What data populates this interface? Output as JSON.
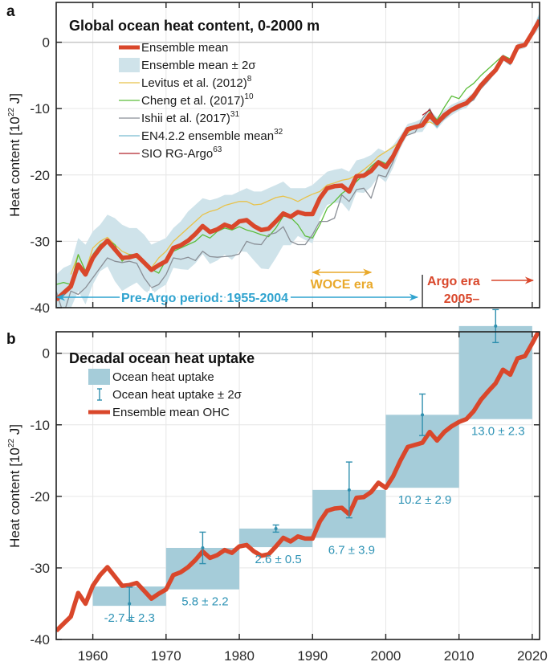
{
  "colors": {
    "ensemble": "#d9472b",
    "band": "#cfe3ea",
    "levitus": "#e8c24a",
    "cheng": "#5cbd3a",
    "ishii": "#8a8f96",
    "en4": "#79bcd0",
    "sio": "#b2242c",
    "bars": "#a5ccd9",
    "errbar": "#2f8fae",
    "preargo": "#2fa3cf",
    "woce": "#e9a92b",
    "argo": "#d9472b",
    "grid": "#e6e6e6",
    "zero": "#c8c8c8",
    "axis": "#222222"
  },
  "chart_data": [
    {
      "panel": "a",
      "type": "line",
      "title": "Global ocean heat content, 0-2000 m",
      "xlabel": "",
      "ylabel": "Heat content [10^22 J]",
      "ylabel_parts": {
        "pre": "Heat content [10",
        "sup": "22",
        "post": " J]"
      },
      "xlim": [
        1955,
        2021
      ],
      "ylim": [
        -40,
        6
      ],
      "yticks": [
        -40,
        -30,
        -20,
        -10,
        0
      ],
      "ytick_labels": [
        "-40",
        "-30",
        "-20",
        "-10",
        "0"
      ],
      "xticks": [
        1960,
        1970,
        1980,
        1990,
        2000,
        2010,
        2020
      ],
      "grid": true,
      "legend_position": "top-left",
      "legend": [
        {
          "key": "ensemble",
          "label": "Ensemble mean",
          "sup": "",
          "style": "thick-line"
        },
        {
          "key": "band",
          "label": "Ensemble mean ± 2σ",
          "sup": "",
          "style": "patch"
        },
        {
          "key": "levitus",
          "label": "Levitus et al. (2012)",
          "sup": "8",
          "style": "line"
        },
        {
          "key": "cheng",
          "label": "Cheng et al. (2017)",
          "sup": "10",
          "style": "line"
        },
        {
          "key": "ishii",
          "label": "Ishii et al. (2017)",
          "sup": "31",
          "style": "line"
        },
        {
          "key": "en4",
          "label": "EN4.2.2 ensemble mean",
          "sup": "32",
          "style": "line"
        },
        {
          "key": "sio",
          "label": "SIO RG-Argo",
          "sup": "63",
          "style": "line"
        }
      ],
      "annotations": {
        "preargo": {
          "label": "Pre-Argo period: 1955-2004",
          "from": 1955,
          "to": 2004
        },
        "woce": {
          "label": "WOCE era",
          "from": 1990,
          "to": 1998
        },
        "argo_line": 2005,
        "argo_label": "Argo era",
        "argo_label2": "2005–"
      },
      "x": [
        1955,
        1956,
        1957,
        1958,
        1959,
        1960,
        1961,
        1962,
        1963,
        1964,
        1965,
        1966,
        1967,
        1968,
        1969,
        1970,
        1971,
        1972,
        1973,
        1974,
        1975,
        1976,
        1977,
        1978,
        1979,
        1980,
        1981,
        1982,
        1983,
        1984,
        1985,
        1986,
        1987,
        1988,
        1989,
        1990,
        1991,
        1992,
        1993,
        1994,
        1995,
        1996,
        1997,
        1998,
        1999,
        2000,
        2001,
        2002,
        2003,
        2004,
        2005,
        2006,
        2007,
        2008,
        2009,
        2010,
        2011,
        2012,
        2013,
        2014,
        2015,
        2016,
        2017,
        2018,
        2019,
        2020,
        2021
      ],
      "series": [
        {
          "name": "Ensemble mean",
          "key": "ensemble",
          "values": [
            -38.8,
            -37.8,
            -36.8,
            -33.5,
            -35.0,
            -32.5,
            -31.0,
            -29.9,
            -31.2,
            -32.5,
            -32.4,
            -32.1,
            -33.2,
            -34.3,
            -33.6,
            -33.0,
            -31.0,
            -30.6,
            -29.9,
            -28.9,
            -27.7,
            -28.6,
            -28.2,
            -27.5,
            -27.9,
            -27.0,
            -26.8,
            -27.7,
            -28.3,
            -28.1,
            -27.0,
            -25.8,
            -26.3,
            -25.6,
            -25.9,
            -25.9,
            -23.5,
            -22.0,
            -21.7,
            -21.6,
            -22.5,
            -20.2,
            -20.1,
            -19.4,
            -18.1,
            -18.8,
            -17.2,
            -15.0,
            -13.1,
            -12.8,
            -12.5,
            -11.0,
            -12.2,
            -11.0,
            -10.2,
            -9.6,
            -9.2,
            -8.1,
            -6.5,
            -5.3,
            -4.2,
            -2.3,
            -3.0,
            -0.7,
            -0.4,
            1.4,
            3.3
          ]
        },
        {
          "name": "Levitus et al. (2012)",
          "key": "levitus",
          "values": [
            null,
            null,
            -35.0,
            -32.0,
            -34.5,
            -31.0,
            -30.0,
            -29.4,
            -30.5,
            -31.5,
            -32.0,
            -32.5,
            -33.5,
            -34.0,
            -32.5,
            -31.5,
            -30.0,
            -29.0,
            -28.0,
            -27.0,
            -26.0,
            -25.5,
            -25.2,
            -24.6,
            -24.3,
            -24.0,
            -24.0,
            -24.5,
            -24.4,
            -23.9,
            -23.4,
            -23.2,
            -23.5,
            -24.0,
            -23.4,
            -22.9,
            -22.5,
            -21.5,
            -21.2,
            -20.8,
            -20.6,
            -20.0,
            -19.2,
            -18.3,
            -17.2,
            -16.5,
            -15.8,
            -14.9,
            -13.7,
            -12.6,
            -12.3,
            -12.0,
            -12.6,
            -11.0,
            -10.5,
            -9.5,
            -9.0,
            -8.0,
            -6.5,
            -5.0,
            -4.0,
            -2.5,
            -3.0,
            -0.9,
            -0.5,
            1.2,
            null
          ]
        },
        {
          "name": "Cheng et al. (2017)",
          "key": "cheng",
          "values": [
            -36.5,
            -36.2,
            -36.5,
            -32.0,
            -34.5,
            -32.0,
            -30.5,
            -29.8,
            -30.5,
            -33.0,
            -32.0,
            -32.0,
            -33.5,
            -34.2,
            -34.8,
            -32.8,
            -31.5,
            -31.0,
            -30.5,
            -30.0,
            -29.0,
            -29.5,
            -28.5,
            -28.0,
            -28.3,
            -27.8,
            -28.3,
            -28.6,
            -29.0,
            -29.3,
            -28.0,
            -26.2,
            -26.4,
            -27.5,
            -29.2,
            -29.5,
            -27.5,
            -25.0,
            -24.0,
            -22.8,
            -22.0,
            -21.0,
            -19.9,
            -18.7,
            -17.8,
            -18.3,
            -16.8,
            -15.0,
            -13.3,
            -12.7,
            -12.3,
            -10.5,
            -11.7,
            -9.8,
            -8.1,
            -8.5,
            -7.0,
            -6.2,
            -5.0,
            -4.0,
            -3.0,
            -2.0,
            -2.5,
            -0.5,
            -0.2,
            1.4,
            3.5
          ]
        },
        {
          "name": "Ishii et al. (2017)",
          "key": "ishii",
          "values": [
            -37.5,
            -41.0,
            -37.5,
            -38.0,
            -37.0,
            -35.5,
            -34.0,
            -32.5,
            -33.0,
            -33.2,
            -33.0,
            -33.3,
            -35.5,
            -37.0,
            -36.5,
            -35.0,
            -32.5,
            -32.7,
            -32.4,
            -32.9,
            -31.5,
            -32.3,
            -32.4,
            -32.3,
            -32.2,
            -31.9,
            -30.0,
            -30.4,
            -30.5,
            -29.0,
            -28.7,
            -27.8,
            -30.0,
            -30.5,
            -30.5,
            -29.0,
            -27.0,
            -27.0,
            -26.5,
            -23.0,
            -24.0,
            -22.2,
            -22.0,
            -23.5,
            -20.0,
            -20.3,
            -18.0,
            -14.5,
            -14.0,
            -13.6,
            -11.5,
            -10.0,
            -12.5,
            -11.5,
            -10.5,
            -10.0,
            -9.3,
            -8.7,
            -7.0,
            -5.8,
            -4.5,
            -2.4,
            -3.3,
            -1.0,
            -0.6,
            1.3,
            3.6
          ]
        },
        {
          "name": "EN4.2.2 ensemble mean",
          "key": "en4",
          "values": [
            null,
            null,
            null,
            null,
            null,
            null,
            null,
            null,
            null,
            null,
            null,
            null,
            null,
            null,
            null,
            null,
            null,
            null,
            null,
            null,
            null,
            null,
            null,
            null,
            null,
            null,
            null,
            null,
            null,
            null,
            null,
            null,
            null,
            null,
            null,
            null,
            null,
            null,
            null,
            null,
            null,
            null,
            null,
            null,
            null,
            null,
            null,
            null,
            null,
            -13.0,
            -12.5,
            -11.4,
            -12.8,
            -11.2,
            -10.5,
            -9.9,
            -9.4,
            -8.5,
            -6.8,
            -5.5,
            -4.4,
            -2.5,
            -3.4,
            -0.8,
            -0.4,
            1.6,
            4.0
          ]
        },
        {
          "name": "SIO RG-Argo",
          "key": "sio",
          "values": [
            null,
            null,
            null,
            null,
            null,
            null,
            null,
            null,
            null,
            null,
            null,
            null,
            null,
            null,
            null,
            null,
            null,
            null,
            null,
            null,
            null,
            null,
            null,
            null,
            null,
            null,
            null,
            null,
            null,
            null,
            null,
            null,
            null,
            null,
            null,
            null,
            null,
            null,
            null,
            null,
            null,
            null,
            null,
            null,
            null,
            null,
            null,
            null,
            null,
            null,
            -11.0,
            -10.2,
            -12.0,
            -10.8,
            -10.0,
            -9.4,
            -9.1,
            -8.3,
            -6.6,
            -5.4,
            -4.3,
            -2.4,
            -3.1,
            -0.8,
            -0.4,
            1.4,
            3.3
          ]
        }
      ],
      "band": {
        "upper": [
          -35.0,
          -34.0,
          -33.5,
          -29.5,
          -30.5,
          -28.5,
          -27.5,
          -26.0,
          -26.5,
          -27.5,
          -28.0,
          -28.0,
          -29.0,
          -30.5,
          -30.0,
          -29.5,
          -28.0,
          -27.0,
          -25.5,
          -24.5,
          -23.5,
          -23.8,
          -23.5,
          -23.0,
          -23.0,
          -22.5,
          -22.0,
          -22.5,
          -22.5,
          -22.0,
          -21.5,
          -21.0,
          -22.0,
          -22.0,
          -22.0,
          -21.5,
          -20.5,
          -19.5,
          -19.2,
          -19.0,
          -19.5,
          -17.8,
          -17.5,
          -17.0,
          -16.0,
          -16.5,
          -15.5,
          -14.0,
          -12.3,
          -12.0,
          -11.5,
          -10.2,
          -11.3,
          -10.2,
          -9.4,
          -8.9,
          -8.5,
          -7.5,
          -6.0,
          -4.8,
          -3.7,
          -1.8,
          -2.5,
          -0.2,
          0.1,
          2.0,
          4.5
        ],
        "lower": [
          -42.6,
          -41.6,
          -40.1,
          -37.5,
          -39.5,
          -36.5,
          -34.5,
          -33.8,
          -36.0,
          -37.5,
          -36.8,
          -36.2,
          -37.4,
          -38.1,
          -37.2,
          -36.5,
          -34.0,
          -34.2,
          -34.3,
          -33.3,
          -31.9,
          -33.4,
          -32.9,
          -32.0,
          -32.8,
          -31.5,
          -31.6,
          -32.9,
          -34.1,
          -34.2,
          -32.5,
          -30.6,
          -30.6,
          -29.2,
          -29.8,
          -30.3,
          -26.5,
          -24.5,
          -24.2,
          -24.2,
          -25.5,
          -22.6,
          -22.7,
          -21.8,
          -20.2,
          -21.1,
          -18.9,
          -16.0,
          -13.9,
          -13.6,
          -13.5,
          -11.8,
          -13.1,
          -11.8,
          -11.0,
          -10.3,
          -9.9,
          -8.7,
          -7.0,
          -5.8,
          -4.7,
          -2.8,
          -3.5,
          -1.2,
          -0.9,
          0.8,
          2.1
        ]
      }
    },
    {
      "panel": "b",
      "type": "bar",
      "title": "Decadal ocean heat uptake",
      "xlabel": "",
      "ylabel": "Heat content [10^22 J]",
      "ylabel_parts": {
        "pre": "Heat content [10",
        "sup": "22",
        "post": " J]"
      },
      "xlim": [
        1955,
        2021
      ],
      "ylim": [
        -40,
        3
      ],
      "yticks": [
        -40,
        -30,
        -20,
        -10,
        0
      ],
      "ytick_labels": [
        "-40",
        "-30",
        "-20",
        "-10",
        "0"
      ],
      "xticks": [
        1960,
        1970,
        1980,
        1990,
        2000,
        2010,
        2020
      ],
      "xtick_labels": [
        "1960",
        "1970",
        "1980",
        "1990",
        "2000",
        "2010",
        "2020"
      ],
      "grid": true,
      "legend_position": "top-left",
      "legend": [
        {
          "key": "bars",
          "label": "Ocean heat uptake",
          "style": "patch"
        },
        {
          "key": "errbar",
          "label": "Ocean heat uptake ± 2σ",
          "style": "errorbar"
        },
        {
          "key": "ensemble",
          "label": "Ensemble mean OHC",
          "style": "thick-line"
        }
      ],
      "categories": [
        "1960-1969",
        "1970-1979",
        "1980-1989",
        "1990-1999",
        "2000-2009",
        "2010-2020"
      ],
      "bars": [
        {
          "x0": 1960,
          "x1": 1970,
          "bottom": -35.3,
          "top": -32.6,
          "uptake": -2.7,
          "err": 2.3,
          "mid": 1965,
          "center": -35.0,
          "label": "-2.7 ± 2.3"
        },
        {
          "x0": 1970,
          "x1": 1980,
          "bottom": -33.0,
          "top": -27.2,
          "uptake": 5.8,
          "err": 2.2,
          "mid": 1975,
          "center": -27.2,
          "label": "5.8 ± 2.2"
        },
        {
          "x0": 1980,
          "x1": 1990,
          "bottom": -27.1,
          "top": -24.5,
          "uptake": 2.6,
          "err": 0.5,
          "mid": 1985,
          "center": -24.5,
          "label": "2.6 ± 0.5"
        },
        {
          "x0": 1990,
          "x1": 2000,
          "bottom": -25.8,
          "top": -19.1,
          "uptake": 6.7,
          "err": 3.9,
          "mid": 1995,
          "center": -19.1,
          "label": "6.7 ± 3.9"
        },
        {
          "x0": 2000,
          "x1": 2010,
          "bottom": -18.8,
          "top": -8.6,
          "uptake": 10.2,
          "err": 2.9,
          "mid": 2005,
          "center": -8.6,
          "label": "10.2 ± 2.9"
        },
        {
          "x0": 2010,
          "x1": 2020,
          "bottom": -9.2,
          "top": 3.8,
          "uptake": 13.0,
          "err": 2.3,
          "mid": 2015,
          "center": 3.8,
          "label": "13.0 ± 2.3"
        }
      ]
    }
  ]
}
